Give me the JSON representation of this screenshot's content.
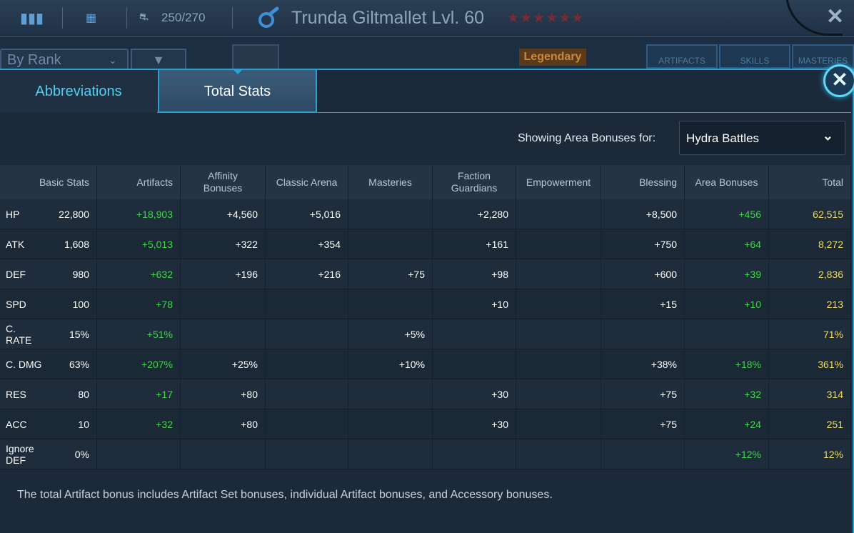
{
  "topbar": {
    "menu_icon": "columns-icon",
    "grid_icon": "grid-icon",
    "helmet_icon": "helmet-icon",
    "champion_count": "250/270",
    "faction_icon": "faction-swirl-icon",
    "title": "Trunda Giltmallet Lvl. 60",
    "stars": "★★★★★★",
    "close_icon": "close-icon"
  },
  "background": {
    "sort_label": "By Rank",
    "rarity_label": "Legendary",
    "tabs": [
      "ARTIFACTS",
      "SKILLS",
      "MASTERIES"
    ]
  },
  "tabs": {
    "abbreviations": "Abbreviations",
    "total_stats": "Total Stats"
  },
  "area": {
    "label": "Showing Area Bonuses for:",
    "selected": "Hydra Battles"
  },
  "columns": [
    "Basic Stats",
    "Artifacts",
    "Affinity Bonuses",
    "Classic Arena",
    "Masteries",
    "Faction Guardians",
    "Empowerment",
    "Blessing",
    "Area Bonuses",
    "Total"
  ],
  "rows": [
    {
      "stat": "HP",
      "basic": "22,800",
      "artifacts": "+18,903",
      "affinity": "+4,560",
      "arena": "+5,016",
      "masteries": "",
      "faction": "+2,280",
      "empower": "",
      "blessing": "+8,500",
      "area": "+456",
      "total": "62,515"
    },
    {
      "stat": "ATK",
      "basic": "1,608",
      "artifacts": "+5,013",
      "affinity": "+322",
      "arena": "+354",
      "masteries": "",
      "faction": "+161",
      "empower": "",
      "blessing": "+750",
      "area": "+64",
      "total": "8,272"
    },
    {
      "stat": "DEF",
      "basic": "980",
      "artifacts": "+632",
      "affinity": "+196",
      "arena": "+216",
      "masteries": "+75",
      "faction": "+98",
      "empower": "",
      "blessing": "+600",
      "area": "+39",
      "total": "2,836"
    },
    {
      "stat": "SPD",
      "basic": "100",
      "artifacts": "+78",
      "affinity": "",
      "arena": "",
      "masteries": "",
      "faction": "+10",
      "empower": "",
      "blessing": "+15",
      "area": "+10",
      "total": "213"
    },
    {
      "stat": "C. RATE",
      "basic": "15%",
      "artifacts": "+51%",
      "affinity": "",
      "arena": "",
      "masteries": "+5%",
      "faction": "",
      "empower": "",
      "blessing": "",
      "area": "",
      "total": "71%"
    },
    {
      "stat": "C. DMG",
      "basic": "63%",
      "artifacts": "+207%",
      "affinity": "+25%",
      "arena": "",
      "masteries": "+10%",
      "faction": "",
      "empower": "",
      "blessing": "+38%",
      "area": "+18%",
      "total": "361%"
    },
    {
      "stat": "RES",
      "basic": "80",
      "artifacts": "+17",
      "affinity": "+80",
      "arena": "",
      "masteries": "",
      "faction": "+30",
      "empower": "",
      "blessing": "+75",
      "area": "+32",
      "total": "314"
    },
    {
      "stat": "ACC",
      "basic": "10",
      "artifacts": "+32",
      "affinity": "+80",
      "arena": "",
      "masteries": "",
      "faction": "+30",
      "empower": "",
      "blessing": "+75",
      "area": "+24",
      "total": "251"
    },
    {
      "stat": "Ignore DEF",
      "basic": "0%",
      "artifacts": "",
      "affinity": "",
      "arena": "",
      "masteries": "",
      "faction": "",
      "empower": "",
      "blessing": "",
      "area": "+12%",
      "total": "12%"
    }
  ],
  "footnote": "The total Artifact bonus includes Artifact Set bonuses, individual Artifact bonuses, and Accessory bonuses.",
  "colors": {
    "accent": "#2d9fd0",
    "bonus_green": "#40d64a",
    "total_yellow": "#f1dc5c",
    "tab_active_text": "#ffffff",
    "tab_inactive_text": "#4fd0f0"
  }
}
